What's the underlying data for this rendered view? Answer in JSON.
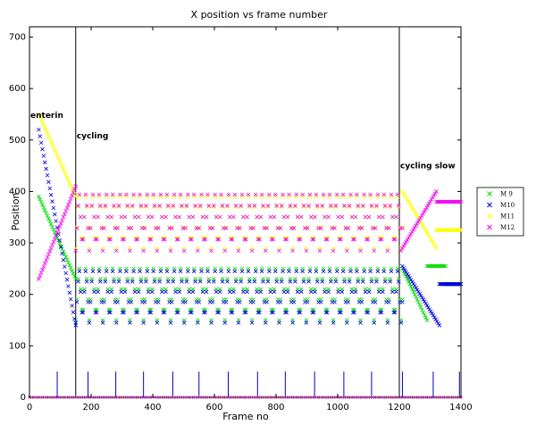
{
  "chart_data": {
    "type": "scatter",
    "title": "X position vs frame number",
    "xlabel": "Frame no",
    "ylabel": "Position",
    "xlim": [
      0,
      1400
    ],
    "ylim": [
      0,
      720
    ],
    "xticks": [
      0,
      200,
      400,
      600,
      800,
      1000,
      1200,
      1400
    ],
    "yticks": [
      0,
      100,
      200,
      300,
      400,
      500,
      600,
      700
    ],
    "marker": "x",
    "legend_position": "outside-right",
    "grid": false,
    "annotations": [
      {
        "text": "enterin",
        "x": 0,
        "y": 543
      },
      {
        "text": "cycling",
        "x": 150,
        "y": 503
      },
      {
        "text": "cycling slow",
        "x": 1200,
        "y": 445
      }
    ],
    "vertical_lines": [
      150,
      1200
    ],
    "event_ticks": {
      "x": [
        90,
        190,
        280,
        370,
        465,
        550,
        645,
        740,
        830,
        925,
        1020,
        1110,
        1210,
        1310,
        1395
      ],
      "height": 50
    },
    "series": [
      {
        "name": "M 9",
        "color": "#00dd00",
        "segments": [
          {
            "x": [
              30,
              150
            ],
            "y": [
              390,
              230
            ]
          },
          {
            "x": [
              150,
              1210
            ],
            "y": [
              150,
              260
            ],
            "period": 22
          },
          {
            "x": [
              1210,
              1290
            ],
            "y": [
              250,
              150
            ]
          },
          {
            "x": [
              1290,
              1350
            ],
            "y": [
              255,
              255
            ]
          },
          {
            "x": [
              1350,
              1400
            ],
            "y": [
              220,
              220
            ]
          }
        ]
      },
      {
        "name": "M10",
        "color": "#0000dd",
        "segments": [
          {
            "x": [
              30,
              150
            ],
            "y": [
              520,
              140
            ]
          },
          {
            "x": [
              150,
              1210
            ],
            "y": [
              145,
              255
            ],
            "period": 22
          },
          {
            "x": [
              1210,
              1330
            ],
            "y": [
              255,
              140
            ]
          },
          {
            "x": [
              1330,
              1400
            ],
            "y": [
              220,
              220
            ]
          }
        ]
      },
      {
        "name": "M11",
        "color": "#ffff00",
        "segments": [
          {
            "x": [
              30,
              150
            ],
            "y": [
              550,
              390
            ]
          },
          {
            "x": [
              150,
              1210
            ],
            "y": [
              290,
              400
            ],
            "period": 22
          },
          {
            "x": [
              1210,
              1320
            ],
            "y": [
              400,
              290
            ]
          },
          {
            "x": [
              1320,
              1400
            ],
            "y": [
              325,
              325
            ]
          }
        ]
      },
      {
        "name": "M12",
        "color": "#ee00ee",
        "segments": [
          {
            "x": [
              30,
              150
            ],
            "y": [
              230,
              410
            ]
          },
          {
            "x": [
              150,
              1210
            ],
            "y": [
              285,
              405
            ],
            "period": 22
          },
          {
            "x": [
              1210,
              1320
            ],
            "y": [
              290,
              400
            ]
          },
          {
            "x": [
              1320,
              1400
            ],
            "y": [
              380,
              380
            ]
          }
        ]
      }
    ]
  }
}
